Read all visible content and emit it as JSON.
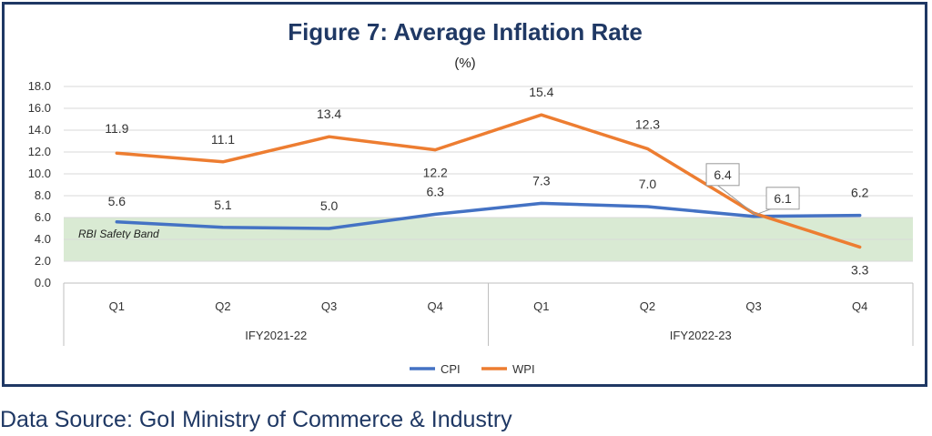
{
  "chart_data": {
    "type": "line",
    "title": "Figure 7: Average Inflation Rate",
    "subtitle": "(%)",
    "categories": [
      "Q1",
      "Q2",
      "Q3",
      "Q4",
      "Q1",
      "Q2",
      "Q3",
      "Q4"
    ],
    "groups": [
      {
        "label": "IFY2021-22",
        "span": 4
      },
      {
        "label": "IFY2022-23",
        "span": 4
      }
    ],
    "ylim": [
      0,
      18
    ],
    "yticks": [
      "0.0",
      "2.0",
      "4.0",
      "6.0",
      "8.0",
      "10.0",
      "12.0",
      "14.0",
      "16.0",
      "18.0"
    ],
    "grid": true,
    "legend_position": "bottom",
    "series": [
      {
        "name": "CPI",
        "color": "#4472c4",
        "values": [
          5.6,
          5.1,
          5.0,
          6.3,
          7.3,
          7.0,
          6.1,
          6.2
        ],
        "labels": [
          "5.6",
          "5.1",
          "5.0",
          "6.3",
          "7.3",
          "7.0",
          "6.1",
          "6.2"
        ]
      },
      {
        "name": "WPI",
        "color": "#ed7d31",
        "values": [
          11.9,
          11.1,
          13.4,
          12.2,
          15.4,
          12.3,
          6.4,
          3.3
        ],
        "labels": [
          "11.9",
          "11.1",
          "13.4",
          "12.2",
          "15.4",
          "12.3",
          "6.4",
          "3.3"
        ]
      }
    ],
    "band": {
      "label": "RBI Safety Band",
      "from": 2.0,
      "to": 6.0,
      "color": "#d9ead3"
    }
  },
  "footer": {
    "source": "Data Source: GoI Ministry of Commerce & Industry"
  }
}
